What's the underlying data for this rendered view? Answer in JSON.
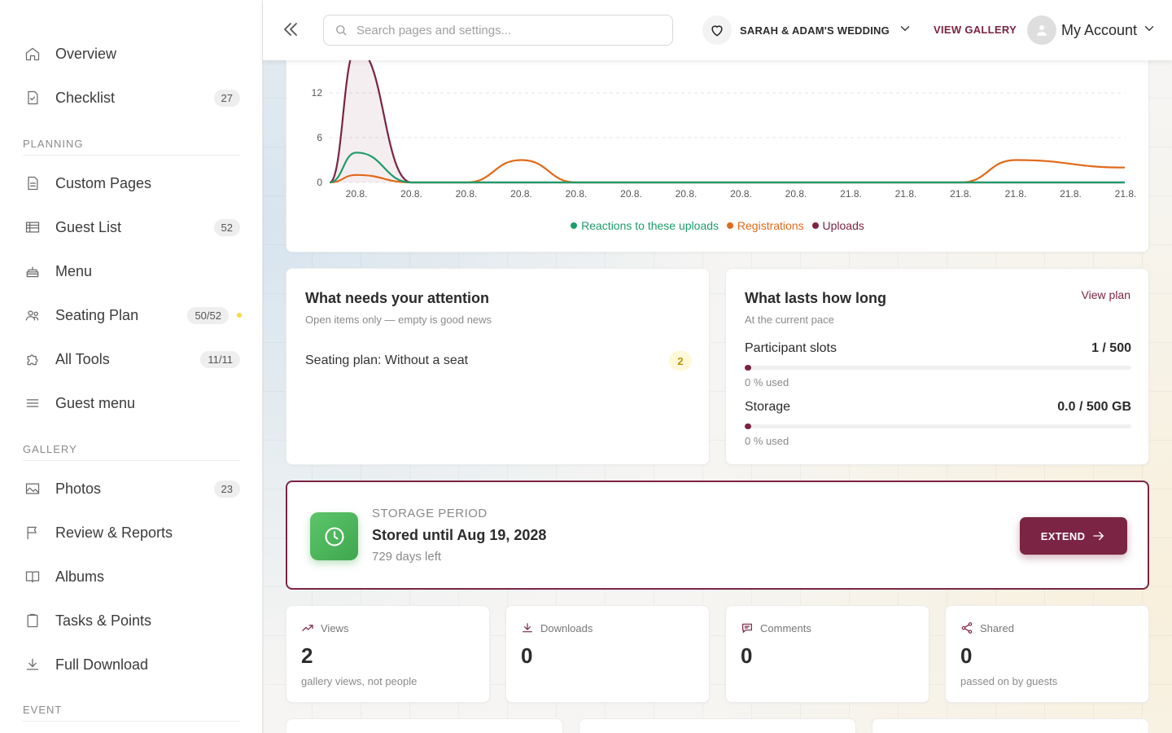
{
  "sidebar": {
    "items_top": [
      {
        "label": "Overview",
        "icon": "home-icon",
        "badge": ""
      },
      {
        "label": "Checklist",
        "icon": "checklist-icon",
        "badge": "27"
      }
    ],
    "planning_label": "PLANNING",
    "planning": [
      {
        "label": "Custom Pages",
        "icon": "page-icon",
        "badge": ""
      },
      {
        "label": "Guest List",
        "icon": "table-icon",
        "badge": "52"
      },
      {
        "label": "Menu",
        "icon": "cake-icon",
        "badge": ""
      },
      {
        "label": "Seating Plan",
        "icon": "people-icon",
        "badge": "50/52"
      },
      {
        "label": "All Tools",
        "icon": "puzzle-icon",
        "badge": "11/11"
      },
      {
        "label": "Guest menu",
        "icon": "menu-icon",
        "badge": ""
      }
    ],
    "gallery_label": "GALLERY",
    "gallery": [
      {
        "label": "Photos",
        "icon": "image-icon",
        "badge": "23"
      },
      {
        "label": "Review & Reports",
        "icon": "flag-icon",
        "badge": ""
      },
      {
        "label": "Albums",
        "icon": "book-icon",
        "badge": ""
      },
      {
        "label": "Tasks & Points",
        "icon": "clipboard-icon",
        "badge": ""
      },
      {
        "label": "Full Download",
        "icon": "download-icon",
        "badge": ""
      }
    ],
    "event_label": "EVENT"
  },
  "topbar": {
    "search_placeholder": "Search pages and settings...",
    "event_name": "SARAH & ADAM'S WEDDING",
    "view_gallery": "VIEW GALLERY",
    "account_label": "My Account"
  },
  "chart_data": {
    "type": "line",
    "x": [
      "20.8.",
      "20.8.",
      "20.8.",
      "20.8.",
      "20.8.",
      "20.8.",
      "20.8.",
      "20.8.",
      "20.8.",
      "21.8.",
      "21.8.",
      "21.8.",
      "21.8.",
      "21.8.",
      "21.8."
    ],
    "y_ticks": [
      "0",
      "6",
      "12"
    ],
    "ylim": [
      0,
      18
    ],
    "series": [
      {
        "name": "Reactions to these uploads",
        "color": "#1e9b6b",
        "values": [
          0,
          4,
          0,
          0,
          0,
          0,
          0,
          0,
          0,
          0,
          0,
          0,
          0,
          0,
          0
        ]
      },
      {
        "name": "Registrations",
        "color": "#e06a1a",
        "values": [
          0,
          1,
          0,
          0,
          3,
          0,
          0,
          0,
          0,
          0,
          0,
          0,
          0,
          3,
          2
        ]
      },
      {
        "name": "Uploads",
        "color": "#7b2443",
        "values": [
          0,
          18,
          0,
          0,
          0,
          0,
          0,
          0,
          0,
          0,
          0,
          0,
          0,
          0,
          0
        ]
      }
    ]
  },
  "attention": {
    "title": "What needs your attention",
    "subtitle": "Open items only — empty is good news",
    "items": [
      {
        "label": "Seating plan: Without a seat",
        "count": "2"
      }
    ]
  },
  "lasts": {
    "title": "What lasts how long",
    "subtitle": "At the current pace",
    "view_plan": "View plan",
    "participants": {
      "label": "Participant slots",
      "value": "1 / 500",
      "used": "0 % used",
      "fraction": 0.002
    },
    "storage": {
      "label": "Storage",
      "value": "0.0 / 500 GB",
      "used": "0 % used",
      "fraction": 0.0
    }
  },
  "storage_period": {
    "kicker": "STORAGE PERIOD",
    "title": "Stored until Aug 19, 2028",
    "days_left": "729 days left",
    "extend_label": "EXTEND"
  },
  "stats": [
    {
      "label": "Views",
      "value": "2",
      "note": "gallery views, not people"
    },
    {
      "label": "Downloads",
      "value": "0",
      "note": ""
    },
    {
      "label": "Comments",
      "value": "0",
      "note": ""
    },
    {
      "label": "Shared",
      "value": "0",
      "note": "passed on by guests"
    }
  ],
  "colors": {
    "accent": "#7b2443",
    "green": "#4cb85c"
  }
}
